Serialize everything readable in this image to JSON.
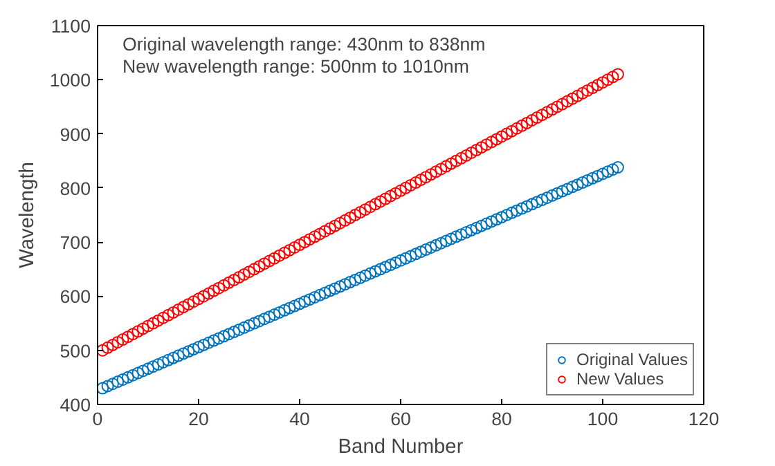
{
  "chart_data": {
    "type": "scatter",
    "xlabel": "Band Number",
    "ylabel": "Wavelength",
    "annotations": [
      "Original wavelength range: 430nm to 838nm",
      "New wavelength range: 500nm to 1010nm"
    ],
    "x": [
      1,
      2,
      3,
      4,
      5,
      6,
      7,
      8,
      9,
      10,
      11,
      12,
      13,
      14,
      15,
      16,
      17,
      18,
      19,
      20,
      21,
      22,
      23,
      24,
      25,
      26,
      27,
      28,
      29,
      30,
      31,
      32,
      33,
      34,
      35,
      36,
      37,
      38,
      39,
      40,
      41,
      42,
      43,
      44,
      45,
      46,
      47,
      48,
      49,
      50,
      51,
      52,
      53,
      54,
      55,
      56,
      57,
      58,
      59,
      60,
      61,
      62,
      63,
      64,
      65,
      66,
      67,
      68,
      69,
      70,
      71,
      72,
      73,
      74,
      75,
      76,
      77,
      78,
      79,
      80,
      81,
      82,
      83,
      84,
      85,
      86,
      87,
      88,
      89,
      90,
      91,
      92,
      93,
      94,
      95,
      96,
      97,
      98,
      99,
      100,
      101,
      102,
      103
    ],
    "series": [
      {
        "name": "Original Values",
        "color": "#0072bd",
        "values": [
          430,
          434,
          438,
          442,
          446,
          450,
          454,
          458,
          462,
          466,
          470,
          474,
          478,
          482,
          486,
          490,
          494,
          498,
          502,
          506,
          510,
          514,
          518,
          522,
          526,
          530,
          534,
          538,
          542,
          546,
          550,
          554,
          558,
          562,
          566,
          570,
          574,
          578,
          582,
          586,
          590,
          594,
          598,
          602,
          606,
          610,
          614,
          618,
          622,
          626,
          630,
          634,
          638,
          642,
          646,
          650,
          654,
          658,
          662,
          666,
          670,
          674,
          678,
          682,
          686,
          690,
          694,
          698,
          702,
          706,
          710,
          714,
          718,
          722,
          726,
          730,
          734,
          738,
          742,
          746,
          750,
          754,
          758,
          762,
          766,
          770,
          774,
          778,
          782,
          786,
          790,
          794,
          798,
          802,
          806,
          810,
          814,
          818,
          822,
          826,
          830,
          834,
          838
        ]
      },
      {
        "name": "New Values",
        "color": "#ff0000",
        "values": [
          500,
          505,
          510,
          515,
          520,
          525,
          530,
          535,
          540,
          545,
          550,
          555,
          560,
          565,
          570,
          575,
          580,
          585,
          590,
          595,
          600,
          605,
          610,
          615,
          620,
          625,
          630,
          635,
          640,
          645,
          650,
          655,
          660,
          665,
          670,
          675,
          680,
          685,
          690,
          695,
          700,
          705,
          710,
          715,
          720,
          725,
          730,
          735,
          740,
          745,
          750,
          755,
          760,
          765,
          770,
          775,
          780,
          785,
          790,
          795,
          800,
          805,
          810,
          815,
          820,
          825,
          830,
          835,
          840,
          845,
          850,
          855,
          860,
          865,
          870,
          875,
          880,
          885,
          890,
          895,
          900,
          905,
          910,
          915,
          920,
          925,
          930,
          935,
          940,
          945,
          950,
          955,
          960,
          965,
          970,
          975,
          980,
          985,
          990,
          995,
          1000,
          1005,
          1010
        ]
      }
    ],
    "xlim": [
      0,
      120
    ],
    "xticks": [
      0,
      20,
      40,
      60,
      80,
      100,
      120
    ],
    "ylim": [
      400,
      1100
    ],
    "yticks": [
      400,
      500,
      600,
      700,
      800,
      900,
      1000,
      1100
    ],
    "grid": false,
    "legend": "bottom right",
    "marker": "circle"
  }
}
